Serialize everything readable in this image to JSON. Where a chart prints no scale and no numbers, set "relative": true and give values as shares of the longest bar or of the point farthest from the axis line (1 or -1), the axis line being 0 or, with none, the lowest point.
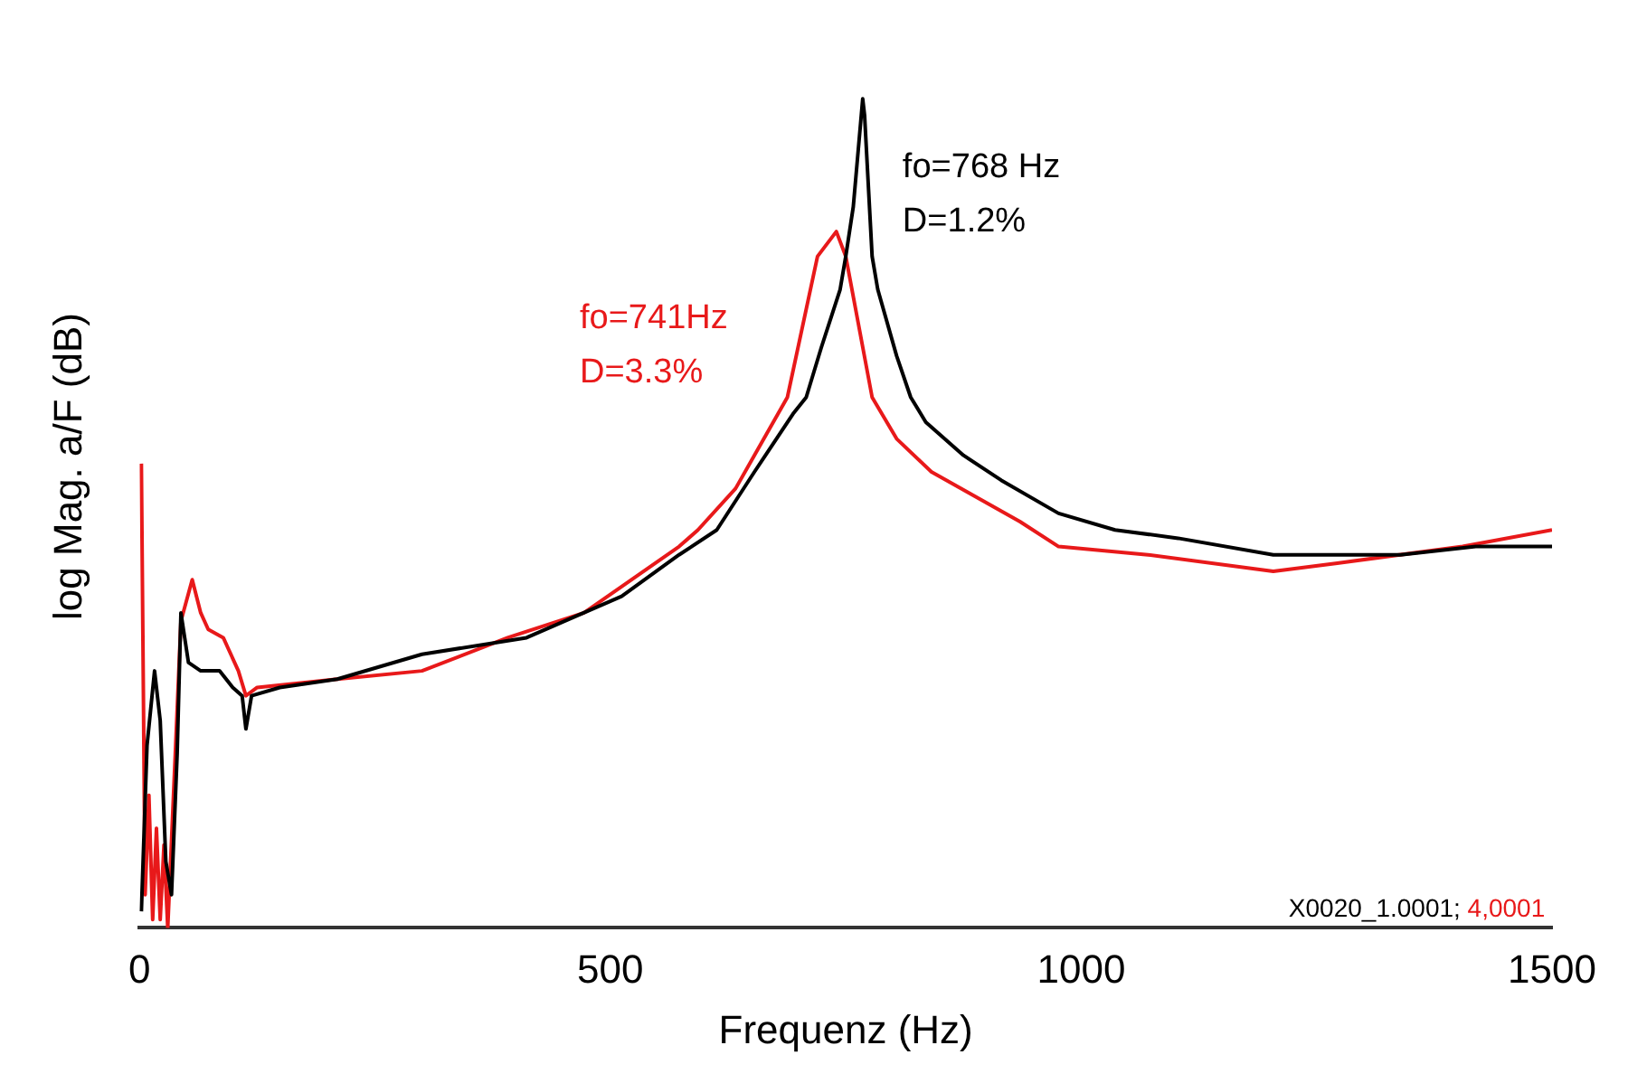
{
  "chart_data": {
    "type": "line",
    "xlabel": "Frequenz (Hz)",
    "ylabel": "log Mag. a/F (dB)",
    "relative": true,
    "xlim": [
      0,
      1500
    ],
    "xticks": [
      0,
      500,
      1000,
      1500
    ],
    "grid": false,
    "legend": false,
    "marker": "none",
    "line_style": "solid",
    "series": [
      {
        "color": "#000000",
        "x": [
          2,
          8,
          16,
          22,
          28,
          34,
          40,
          44,
          52,
          65,
          85,
          99,
          109,
          113,
          119,
          149,
          210,
          300,
          411,
          512,
          573,
          613,
          653,
          694,
          708,
          724,
          744,
          750,
          758,
          768,
          770,
          778,
          784,
          804,
          819,
          835,
          875,
          915,
          976,
          1036,
          1103,
          1204,
          1238,
          1339,
          1419,
          1500
        ],
        "values": [
          0.02,
          0.22,
          0.31,
          0.25,
          0.08,
          0.04,
          0.21,
          0.38,
          0.32,
          0.31,
          0.31,
          0.29,
          0.28,
          0.24,
          0.28,
          0.29,
          0.3,
          0.33,
          0.35,
          0.4,
          0.45,
          0.48,
          0.55,
          0.62,
          0.64,
          0.7,
          0.77,
          0.81,
          0.87,
          1.0,
          0.98,
          0.81,
          0.77,
          0.69,
          0.64,
          0.61,
          0.57,
          0.54,
          0.5,
          0.48,
          0.47,
          0.45,
          0.45,
          0.45,
          0.46,
          0.46
        ]
      },
      {
        "color": "#e8191a",
        "x": [
          2,
          6,
          10,
          14,
          18,
          22,
          26,
          30,
          38,
          44,
          56,
          65,
          73,
          89,
          105,
          113,
          125,
          210,
          300,
          391,
          472,
          573,
          593,
          633,
          688,
          720,
          740,
          750,
          778,
          804,
          841,
          935,
          976,
          1071,
          1204,
          1272,
          1405,
          1500
        ],
        "values": [
          0.56,
          0.04,
          0.16,
          0.01,
          0.12,
          0.01,
          0.1,
          0.0,
          0.21,
          0.37,
          0.42,
          0.38,
          0.36,
          0.35,
          0.31,
          0.28,
          0.29,
          0.3,
          0.31,
          0.35,
          0.38,
          0.46,
          0.48,
          0.53,
          0.64,
          0.81,
          0.84,
          0.81,
          0.64,
          0.59,
          0.55,
          0.49,
          0.46,
          0.45,
          0.43,
          0.44,
          0.46,
          0.48
        ]
      }
    ],
    "annotations": [
      "fo=768 Hz\nD=1.2%",
      "fo=741Hz\nD=3.3%",
      "X0020_1.0001;",
      "4,0001"
    ]
  }
}
